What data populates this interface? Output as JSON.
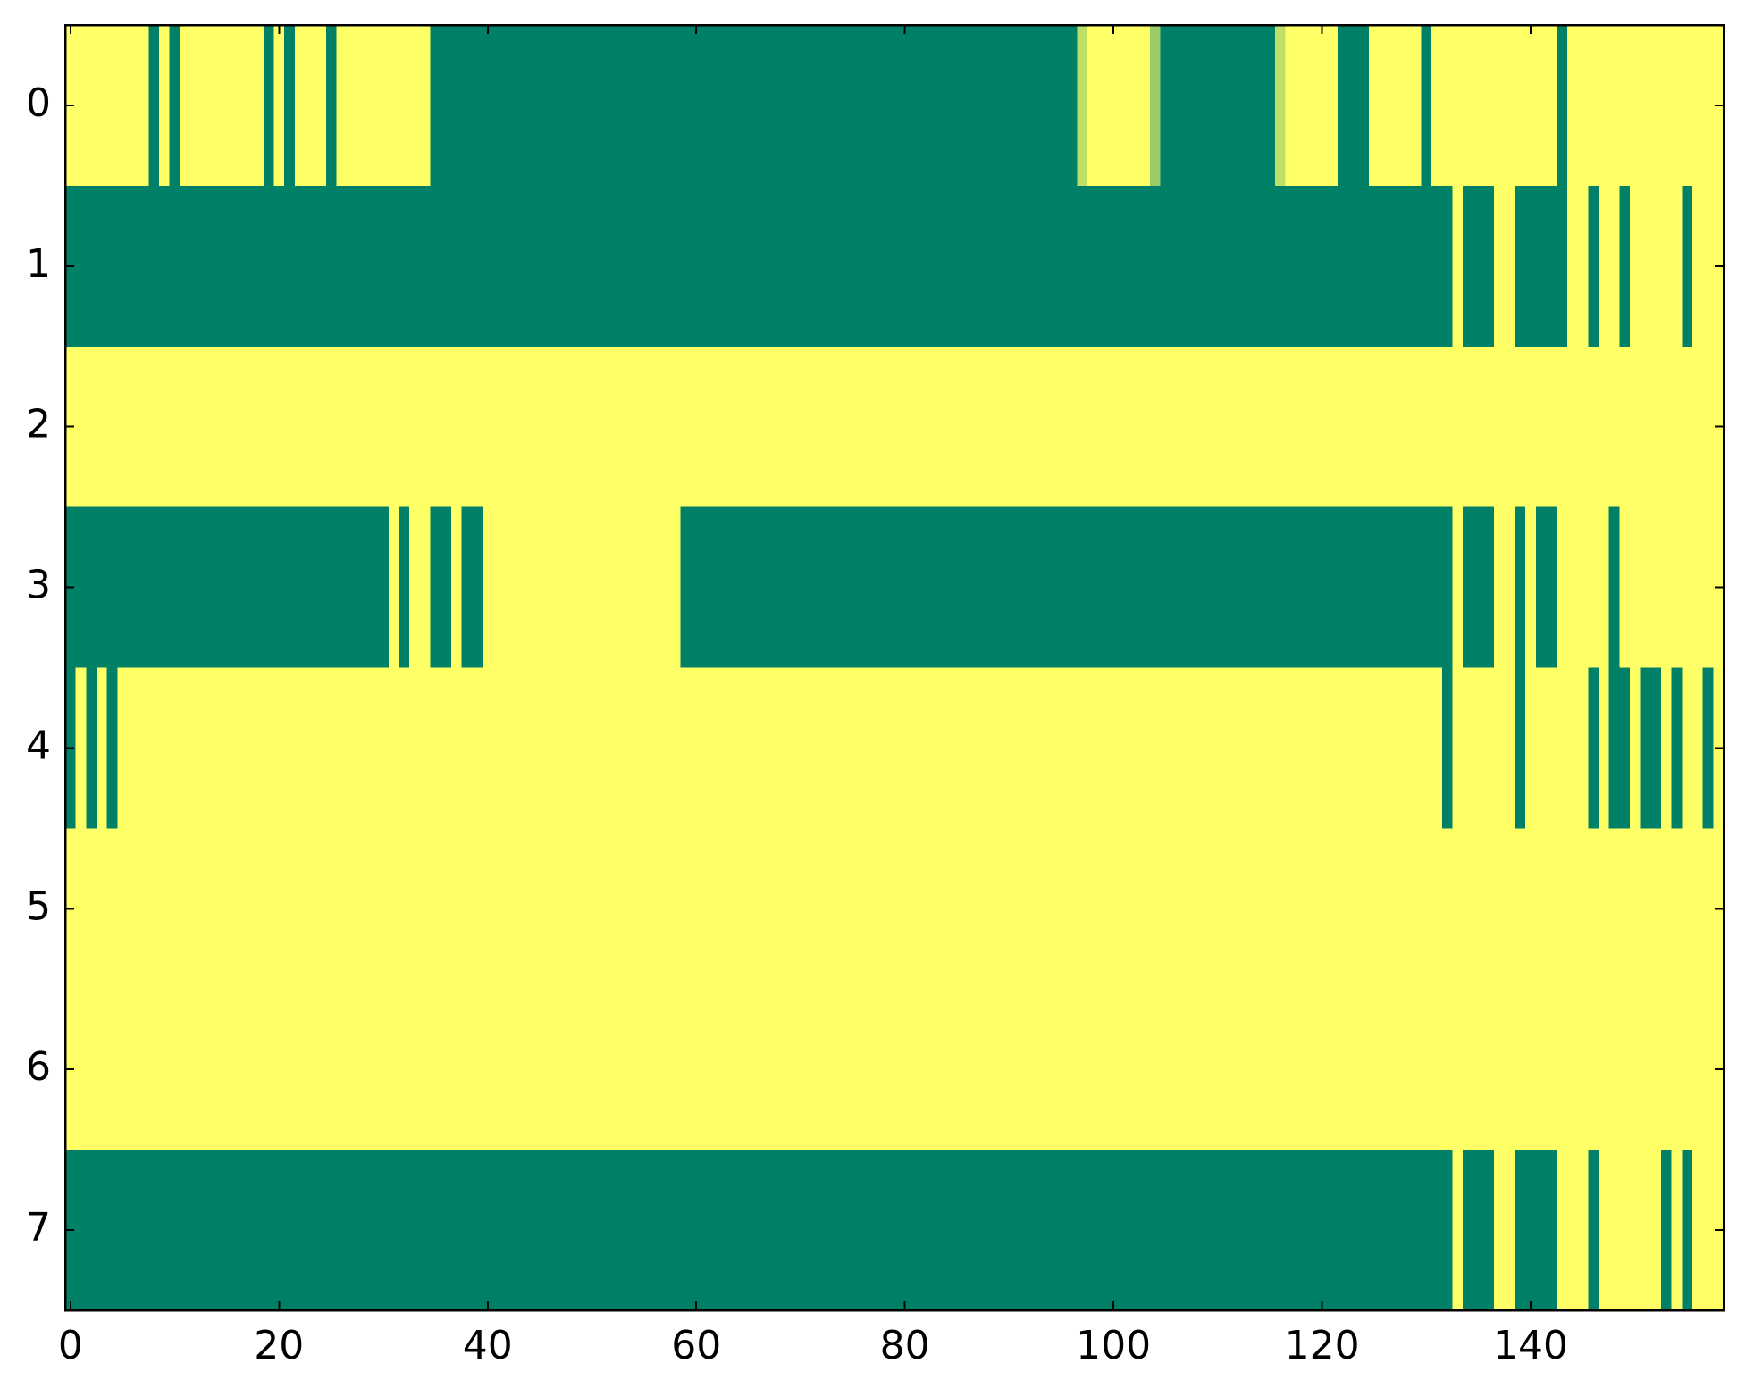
{
  "chart_data": {
    "type": "heatmap",
    "color_low": "#008066",
    "color_high": "#ffff66",
    "clim": [
      0,
      1
    ],
    "xlim": [
      -0.5,
      158.5
    ],
    "xticks": [
      0,
      20,
      40,
      60,
      80,
      100,
      120,
      140
    ],
    "ylim": [
      7.5,
      -0.5
    ],
    "yticks": [
      0,
      1,
      2,
      3,
      4,
      5,
      6,
      7
    ],
    "z": [
      [
        1,
        1,
        1,
        1,
        1,
        1,
        1,
        1,
        0,
        1,
        0,
        1,
        1,
        1,
        1,
        1,
        1,
        1,
        1,
        0,
        1,
        0,
        1,
        1,
        1,
        0,
        1,
        1,
        1,
        1,
        1,
        1,
        1,
        1,
        1,
        0,
        0,
        0,
        0,
        0,
        0,
        0,
        0,
        0,
        0,
        0,
        0,
        0,
        0,
        0,
        0,
        0,
        0,
        0,
        0,
        0,
        0,
        0,
        0,
        0,
        0,
        0,
        0,
        0,
        0,
        0,
        0,
        0,
        0,
        0,
        0,
        0,
        0,
        0,
        0,
        0,
        0,
        0,
        0,
        0,
        0,
        0,
        0,
        0,
        0,
        0,
        0,
        0,
        0,
        0,
        0,
        0,
        0,
        0,
        0,
        0,
        0,
        0.75,
        1,
        1,
        1,
        1,
        1,
        1,
        0.6,
        0,
        0,
        0,
        0,
        0,
        0,
        0,
        0,
        0,
        0,
        0,
        0.75,
        1,
        1,
        1,
        1,
        1,
        0,
        0,
        0,
        1,
        1,
        1,
        1,
        1,
        0,
        1,
        1,
        1,
        1,
        1,
        1,
        1,
        1,
        1,
        1,
        1,
        1,
        0,
        1,
        1,
        1,
        1,
        1,
        1,
        1,
        1,
        1,
        1,
        1,
        1,
        1,
        1,
        1
      ],
      [
        0,
        0,
        0,
        0,
        0,
        0,
        0,
        0,
        0,
        0,
        0,
        0,
        0,
        0,
        0,
        0,
        0,
        0,
        0,
        0,
        0,
        0,
        0,
        0,
        0,
        0,
        0,
        0,
        0,
        0,
        0,
        0,
        0,
        0,
        0,
        0,
        0,
        0,
        0,
        0,
        0,
        0,
        0,
        0,
        0,
        0,
        0,
        0,
        0,
        0,
        0,
        0,
        0,
        0,
        0,
        0,
        0,
        0,
        0,
        0,
        0,
        0,
        0,
        0,
        0,
        0,
        0,
        0,
        0,
        0,
        0,
        0,
        0,
        0,
        0,
        0,
        0,
        0,
        0,
        0,
        0,
        0,
        0,
        0,
        0,
        0,
        0,
        0,
        0,
        0,
        0,
        0,
        0,
        0,
        0,
        0,
        0,
        0,
        0,
        0,
        0,
        0,
        0,
        0,
        0,
        0,
        0,
        0,
        0,
        0,
        0,
        0,
        0,
        0,
        0,
        0,
        0,
        0,
        0,
        0,
        0,
        0,
        0,
        0,
        0,
        0,
        0,
        0,
        0,
        0,
        0,
        0,
        0,
        1,
        0,
        0,
        0,
        1,
        1,
        0,
        0,
        0,
        0,
        0,
        1,
        1,
        0,
        1,
        1,
        0,
        1,
        1,
        1,
        1,
        1,
        0,
        1,
        1,
        1
      ],
      [
        1,
        1,
        1,
        1,
        1,
        1,
        1,
        1,
        1,
        1,
        1,
        1,
        1,
        1,
        1,
        1,
        1,
        1,
        1,
        1,
        1,
        1,
        1,
        1,
        1,
        1,
        1,
        1,
        1,
        1,
        1,
        1,
        1,
        1,
        1,
        1,
        1,
        1,
        1,
        1,
        1,
        1,
        1,
        1,
        1,
        1,
        1,
        1,
        1,
        1,
        1,
        1,
        1,
        1,
        1,
        1,
        1,
        1,
        1,
        1,
        1,
        1,
        1,
        1,
        1,
        1,
        1,
        1,
        1,
        1,
        1,
        1,
        1,
        1,
        1,
        1,
        1,
        1,
        1,
        1,
        1,
        1,
        1,
        1,
        1,
        1,
        1,
        1,
        1,
        1,
        1,
        1,
        1,
        1,
        1,
        1,
        1,
        1,
        1,
        1,
        1,
        1,
        1,
        1,
        1,
        1,
        1,
        1,
        1,
        1,
        1,
        1,
        1,
        1,
        1,
        1,
        1,
        1,
        1,
        1,
        1,
        1,
        1,
        1,
        1,
        1,
        1,
        1,
        1,
        1,
        1,
        1,
        1,
        1,
        1,
        1,
        1,
        1,
        1,
        1,
        1,
        1,
        1,
        1,
        1,
        1,
        1,
        1,
        1,
        1,
        1,
        1,
        1,
        1,
        1,
        1,
        1,
        1,
        1
      ],
      [
        0,
        0,
        0,
        0,
        0,
        0,
        0,
        0,
        0,
        0,
        0,
        0,
        0,
        0,
        0,
        0,
        0,
        0,
        0,
        0,
        0,
        0,
        0,
        0,
        0,
        0,
        0,
        0,
        0,
        0,
        0,
        1,
        0,
        1,
        1,
        0,
        0,
        1,
        0,
        0,
        1,
        1,
        1,
        1,
        1,
        1,
        1,
        1,
        1,
        1,
        1,
        1,
        1,
        1,
        1,
        1,
        1,
        1,
        1,
        0,
        0,
        0,
        0,
        0,
        0,
        0,
        0,
        0,
        0,
        0,
        0,
        0,
        0,
        0,
        0,
        0,
        0,
        0,
        0,
        0,
        0,
        0,
        0,
        0,
        0,
        0,
        0,
        0,
        0,
        0,
        0,
        0,
        0,
        0,
        0,
        0,
        0,
        0,
        0,
        0,
        0,
        0,
        0,
        0,
        0,
        0,
        0,
        0,
        0,
        0,
        0,
        0,
        0,
        0,
        0,
        0,
        0,
        0,
        0,
        0,
        0,
        0,
        0,
        0,
        0,
        0,
        0,
        0,
        0,
        0,
        0,
        0,
        0,
        1,
        0,
        0,
        0,
        1,
        1,
        0,
        1,
        0,
        0,
        1,
        1,
        1,
        1,
        1,
        0,
        1,
        1,
        1,
        1,
        1,
        1,
        1,
        1,
        1,
        1
      ],
      [
        0,
        1,
        0,
        1,
        0,
        1,
        1,
        1,
        1,
        1,
        1,
        1,
        1,
        1,
        1,
        1,
        1,
        1,
        1,
        1,
        1,
        1,
        1,
        1,
        1,
        1,
        1,
        1,
        1,
        1,
        1,
        1,
        1,
        1,
        1,
        1,
        1,
        1,
        1,
        1,
        1,
        1,
        1,
        1,
        1,
        1,
        1,
        1,
        1,
        1,
        1,
        1,
        1,
        1,
        1,
        1,
        1,
        1,
        1,
        1,
        1,
        1,
        1,
        1,
        1,
        1,
        1,
        1,
        1,
        1,
        1,
        1,
        1,
        1,
        1,
        1,
        1,
        1,
        1,
        1,
        1,
        1,
        1,
        1,
        1,
        1,
        1,
        1,
        1,
        1,
        1,
        1,
        1,
        1,
        1,
        1,
        1,
        1,
        1,
        1,
        1,
        1,
        1,
        1,
        1,
        1,
        1,
        1,
        1,
        1,
        1,
        1,
        1,
        1,
        1,
        1,
        1,
        1,
        1,
        1,
        1,
        1,
        1,
        1,
        1,
        1,
        1,
        1,
        1,
        1,
        1,
        1,
        0,
        1,
        1,
        1,
        1,
        1,
        1,
        0,
        1,
        1,
        1,
        1,
        1,
        1,
        0,
        1,
        0,
        0,
        1,
        0,
        0,
        1,
        0,
        1,
        1,
        0,
        1
      ],
      [
        1,
        1,
        1,
        1,
        1,
        1,
        1,
        1,
        1,
        1,
        1,
        1,
        1,
        1,
        1,
        1,
        1,
        1,
        1,
        1,
        1,
        1,
        1,
        1,
        1,
        1,
        1,
        1,
        1,
        1,
        1,
        1,
        1,
        1,
        1,
        1,
        1,
        1,
        1,
        1,
        1,
        1,
        1,
        1,
        1,
        1,
        1,
        1,
        1,
        1,
        1,
        1,
        1,
        1,
        1,
        1,
        1,
        1,
        1,
        1,
        1,
        1,
        1,
        1,
        1,
        1,
        1,
        1,
        1,
        1,
        1,
        1,
        1,
        1,
        1,
        1,
        1,
        1,
        1,
        1,
        1,
        1,
        1,
        1,
        1,
        1,
        1,
        1,
        1,
        1,
        1,
        1,
        1,
        1,
        1,
        1,
        1,
        1,
        1,
        1,
        1,
        1,
        1,
        1,
        1,
        1,
        1,
        1,
        1,
        1,
        1,
        1,
        1,
        1,
        1,
        1,
        1,
        1,
        1,
        1,
        1,
        1,
        1,
        1,
        1,
        1,
        1,
        1,
        1,
        1,
        1,
        1,
        1,
        1,
        1,
        1,
        1,
        1,
        1,
        1,
        1,
        1,
        1,
        1,
        1,
        1,
        1,
        1,
        1,
        1,
        1,
        1,
        1,
        1,
        1,
        1,
        1,
        1,
        1
      ],
      [
        1,
        1,
        1,
        1,
        1,
        1,
        1,
        1,
        1,
        1,
        1,
        1,
        1,
        1,
        1,
        1,
        1,
        1,
        1,
        1,
        1,
        1,
        1,
        1,
        1,
        1,
        1,
        1,
        1,
        1,
        1,
        1,
        1,
        1,
        1,
        1,
        1,
        1,
        1,
        1,
        1,
        1,
        1,
        1,
        1,
        1,
        1,
        1,
        1,
        1,
        1,
        1,
        1,
        1,
        1,
        1,
        1,
        1,
        1,
        1,
        1,
        1,
        1,
        1,
        1,
        1,
        1,
        1,
        1,
        1,
        1,
        1,
        1,
        1,
        1,
        1,
        1,
        1,
        1,
        1,
        1,
        1,
        1,
        1,
        1,
        1,
        1,
        1,
        1,
        1,
        1,
        1,
        1,
        1,
        1,
        1,
        1,
        1,
        1,
        1,
        1,
        1,
        1,
        1,
        1,
        1,
        1,
        1,
        1,
        1,
        1,
        1,
        1,
        1,
        1,
        1,
        1,
        1,
        1,
        1,
        1,
        1,
        1,
        1,
        1,
        1,
        1,
        1,
        1,
        1,
        1,
        1,
        1,
        1,
        1,
        1,
        1,
        1,
        1,
        1,
        1,
        1,
        1,
        1,
        1,
        1,
        1,
        1,
        1,
        1,
        1,
        1,
        1,
        1,
        1,
        1,
        1,
        1,
        1
      ],
      [
        0,
        0,
        0,
        0,
        0,
        0,
        0,
        0,
        0,
        0,
        0,
        0,
        0,
        0,
        0,
        0,
        0,
        0,
        0,
        0,
        0,
        0,
        0,
        0,
        0,
        0,
        0,
        0,
        0,
        0,
        0,
        0,
        0,
        0,
        0,
        0,
        0,
        0,
        0,
        0,
        0,
        0,
        0,
        0,
        0,
        0,
        0,
        0,
        0,
        0,
        0,
        0,
        0,
        0,
        0,
        0,
        0,
        0,
        0,
        0,
        0,
        0,
        0,
        0,
        0,
        0,
        0,
        0,
        0,
        0,
        0,
        0,
        0,
        0,
        0,
        0,
        0,
        0,
        0,
        0,
        0,
        0,
        0,
        0,
        0,
        0,
        0,
        0,
        0,
        0,
        0,
        0,
        0,
        0,
        0,
        0,
        0,
        0,
        0,
        0,
        0,
        0,
        0,
        0,
        0,
        0,
        0,
        0,
        0,
        0,
        0,
        0,
        0,
        0,
        0,
        0,
        0,
        0,
        0,
        0,
        0,
        0,
        0,
        0,
        0,
        0,
        0,
        0,
        0,
        0,
        0,
        0,
        0,
        1,
        0,
        0,
        0,
        1,
        1,
        0,
        0,
        0,
        0,
        1,
        1,
        1,
        0,
        1,
        1,
        1,
        1,
        1,
        1,
        0,
        1,
        0,
        1,
        1,
        1
      ]
    ]
  }
}
